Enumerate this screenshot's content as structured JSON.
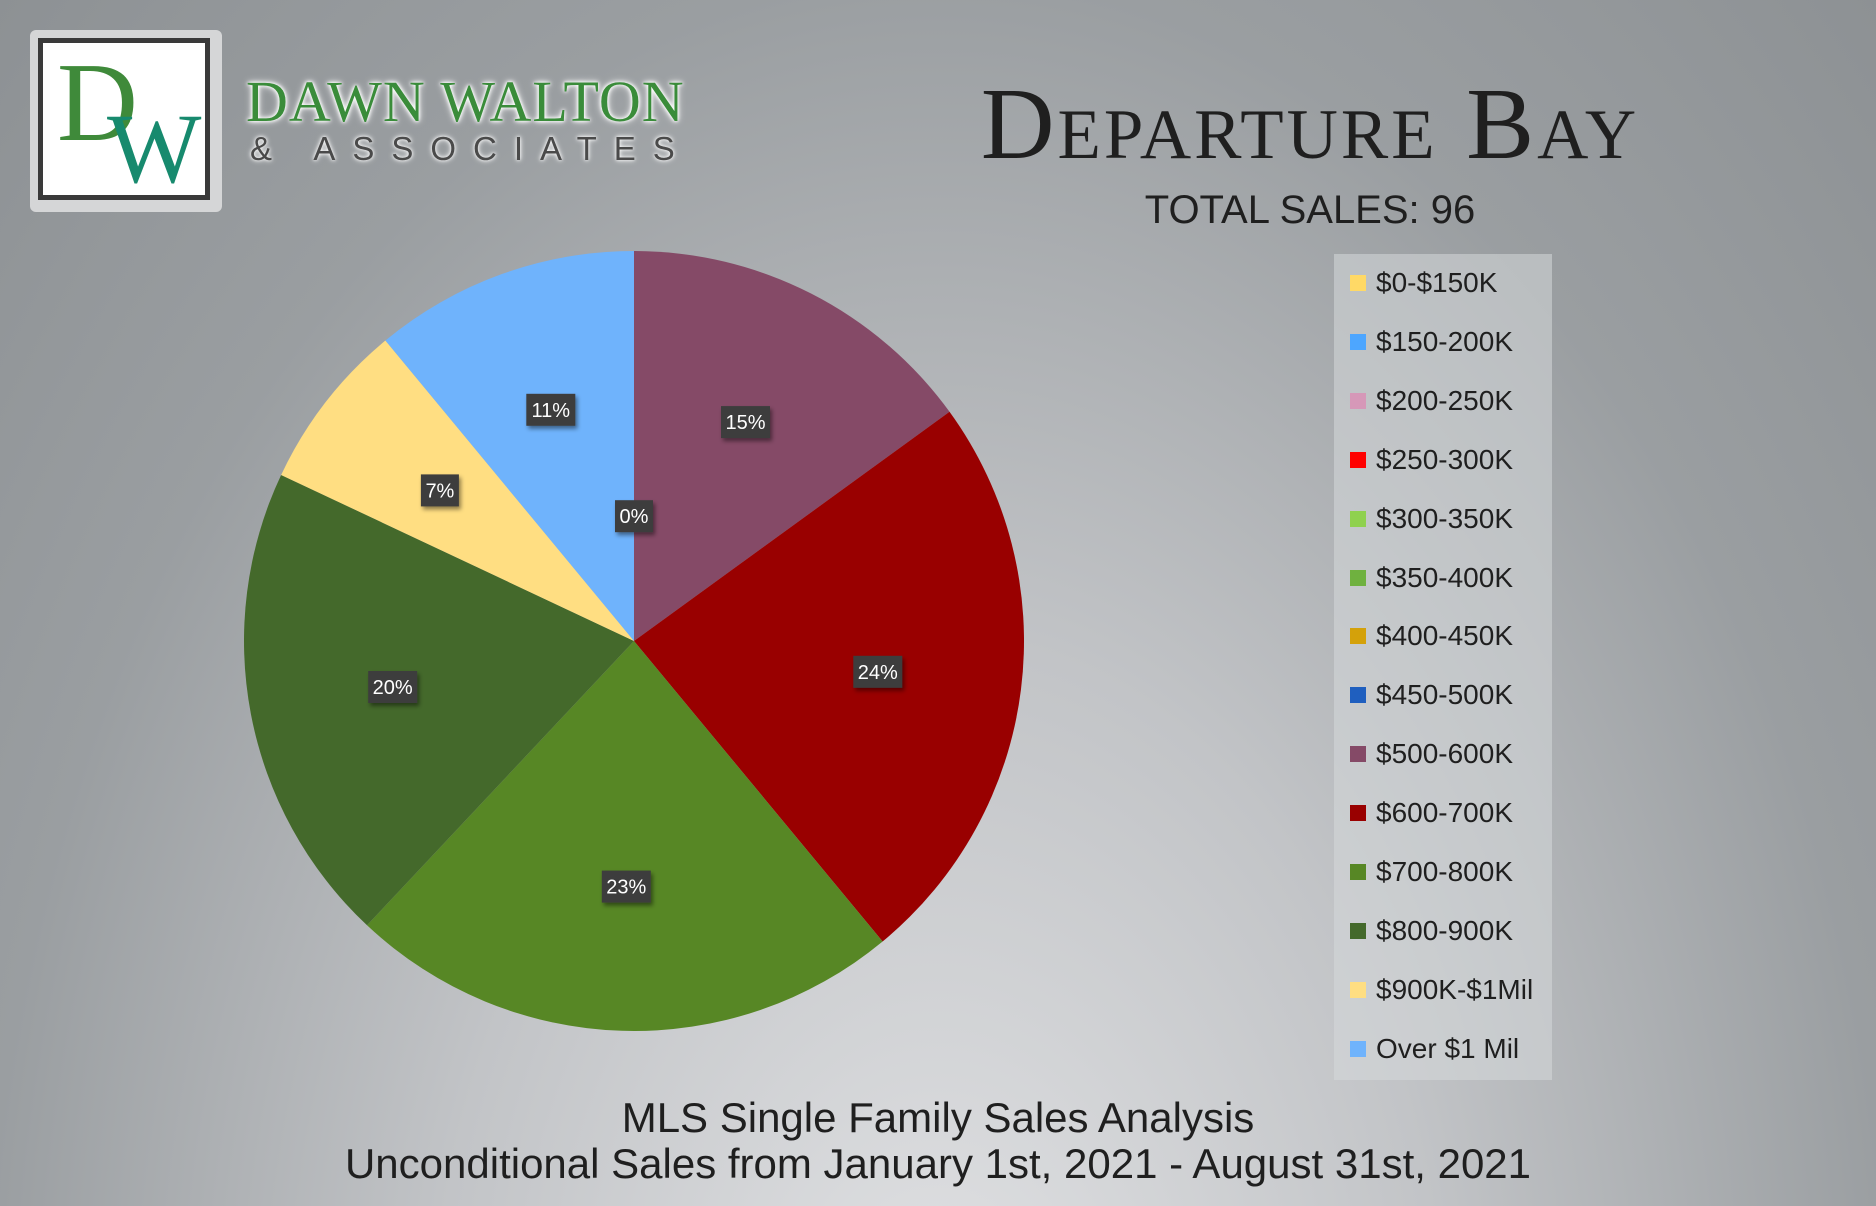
{
  "logo": {
    "letter_d": "D",
    "letter_w": "W",
    "brand_name": "DAWN WALTON",
    "brand_sub": "& ASSOCIATES"
  },
  "header": {
    "title": "Departure Bay",
    "total_sales": "TOTAL SALES: 96"
  },
  "footer": {
    "line1": "MLS Single Family Sales Analysis",
    "line2": "Unconditional Sales from January 1st, 2021 - August 31st, 2021"
  },
  "legend": [
    {
      "label": "$0-$150K",
      "color": "#ffd966"
    },
    {
      "label": "$150-200K",
      "color": "#4da6ff"
    },
    {
      "label": "$200-250K",
      "color": "#d698b8"
    },
    {
      "label": "$250-300K",
      "color": "#ff0000"
    },
    {
      "label": "$300-350K",
      "color": "#8fd14f"
    },
    {
      "label": "$350-400K",
      "color": "#6fb13f"
    },
    {
      "label": "$400-450K",
      "color": "#d4a10a"
    },
    {
      "label": "$450-500K",
      "color": "#1f5fbf"
    },
    {
      "label": "$500-600K",
      "color": "#854a67"
    },
    {
      "label": "$600-700K",
      "color": "#990000"
    },
    {
      "label": "$700-800K",
      "color": "#578725"
    },
    {
      "label": "$800-900K",
      "color": "#44692b"
    },
    {
      "label": "$900K-$1Mil",
      "color": "#ffde82"
    },
    {
      "label": "Over $1 Mil",
      "color": "#6fb3fc"
    }
  ],
  "chart_data": {
    "type": "pie",
    "start_angle_deg": 0,
    "direction": "clockwise",
    "categories": [
      "$0-$150K",
      "$150-200K",
      "$200-250K",
      "$250-300K",
      "$300-350K",
      "$350-400K",
      "$400-450K",
      "$450-500K",
      "$500-600K",
      "$600-700K",
      "$700-800K",
      "$800-900K",
      "$900K-$1Mil",
      "Over $1 Mil"
    ],
    "values": [
      0,
      0,
      0,
      0,
      0,
      0,
      0,
      0,
      15,
      24,
      23,
      20,
      7,
      11
    ],
    "data_labels": [
      "0%",
      "",
      "",
      "",
      "",
      "",
      "",
      "",
      "15%",
      "24%",
      "23%",
      "20%",
      "7%",
      "11%"
    ],
    "colors": [
      "#ffd966",
      "#4da6ff",
      "#d698b8",
      "#ff0000",
      "#8fd14f",
      "#6fb13f",
      "#d4a10a",
      "#1f5fbf",
      "#854a67",
      "#990000",
      "#578725",
      "#44692b",
      "#ffde82",
      "#6fb3fc"
    ],
    "legend_position": "right"
  }
}
